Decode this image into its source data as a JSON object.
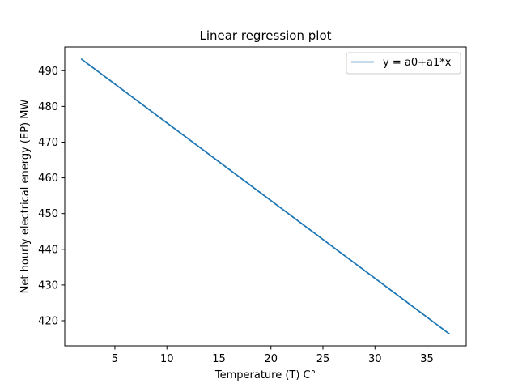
{
  "chart_data": {
    "type": "line",
    "title": "Linear regression plot",
    "xlabel": "Temperature (T) C°",
    "ylabel": "Net hourly electrical energy (EP) MW",
    "xlim": [
      0.18,
      38.77
    ],
    "ylim": [
      412.97,
      496.64
    ],
    "xticks": [
      5,
      10,
      15,
      20,
      25,
      30,
      35
    ],
    "yticks": [
      420,
      430,
      440,
      450,
      460,
      470,
      480,
      490
    ],
    "grid": false,
    "legend_position": "upper right",
    "series": [
      {
        "name": "y = a0+a1*x",
        "color": "#1f77b4",
        "x": [
          1.81,
          37.11
        ],
        "y": [
          493.2,
          416.4
        ]
      }
    ]
  }
}
